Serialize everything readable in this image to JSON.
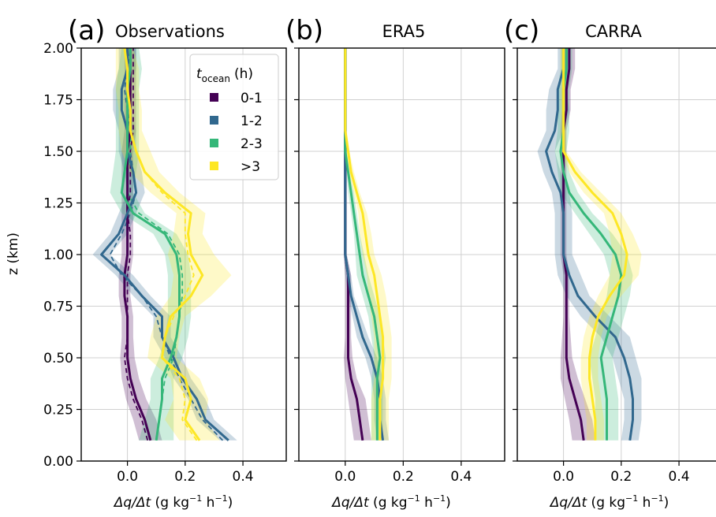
{
  "figure": {
    "ylabel": "z (km)",
    "legend_title_main": "t",
    "legend_title_sub": "ocean",
    "legend_title_unit": "(h)",
    "xlabel_main": "Δq/Δt",
    "xlabel_unit": "(g kg",
    "xlabel_exp1": "−1",
    "xlabel_mid": " h",
    "xlabel_exp2": "−1",
    "xlabel_close": ")"
  },
  "chart_data": [
    {
      "type": "line",
      "panel_label": "(a)",
      "title": "Observations",
      "xlim": [
        -0.16,
        0.55
      ],
      "ylim": [
        0.0,
        2.0
      ],
      "xticks": [
        "0.0",
        "0.2",
        "0.4"
      ],
      "xtick_values": [
        0.0,
        0.2,
        0.4
      ],
      "yticks": [
        "0.00",
        "0.25",
        "0.50",
        "0.75",
        "1.00",
        "1.25",
        "1.50",
        "1.75",
        "2.00"
      ],
      "ytick_values": [
        0.0,
        0.25,
        0.5,
        0.75,
        1.0,
        1.25,
        1.5,
        1.75,
        2.0
      ],
      "grid": true,
      "legend": "top-right",
      "series": [
        {
          "name": "0-1",
          "color": "#440154",
          "z": [
            0.1,
            0.2,
            0.3,
            0.4,
            0.5,
            0.6,
            0.7,
            0.8,
            0.9,
            1.0,
            1.1,
            1.2,
            1.3,
            1.4,
            1.5,
            1.6,
            1.7,
            1.8,
            1.9,
            2.0
          ],
          "x": [
            0.08,
            0.06,
            0.03,
            0.01,
            0.0,
            0.0,
            0.0,
            -0.01,
            -0.01,
            0.0,
            0.0,
            0.0,
            0.0,
            0.0,
            0.0,
            0.01,
            0.01,
            0.01,
            0.01,
            0.01
          ],
          "x_dashed": [
            0.07,
            0.05,
            0.02,
            0.0,
            -0.01,
            0.0,
            0.0,
            0.0,
            0.0,
            0.01,
            0.01,
            0.0,
            0.01,
            0.01,
            0.01,
            0.02,
            0.02,
            0.02,
            0.02,
            0.02
          ],
          "spread": [
            0.04,
            0.04,
            0.035,
            0.03,
            0.025,
            0.02,
            0.02,
            0.02,
            0.02,
            0.02,
            0.02,
            0.02,
            0.02,
            0.02,
            0.02,
            0.02,
            0.02,
            0.02,
            0.02,
            0.02
          ]
        },
        {
          "name": "1-2",
          "color": "#31688e",
          "z": [
            0.1,
            0.2,
            0.3,
            0.4,
            0.5,
            0.6,
            0.7,
            0.8,
            0.9,
            1.0,
            1.1,
            1.2,
            1.3,
            1.4,
            1.5,
            1.6,
            1.7,
            1.8,
            1.9,
            2.0
          ],
          "x": [
            0.35,
            0.27,
            0.24,
            0.19,
            0.16,
            0.12,
            0.12,
            0.05,
            -0.01,
            -0.09,
            -0.03,
            0.0,
            0.03,
            0.02,
            0.0,
            0.0,
            -0.02,
            -0.02,
            0.0,
            0.0
          ],
          "x_dashed": [
            0.33,
            0.26,
            0.22,
            0.18,
            0.15,
            0.12,
            0.1,
            0.05,
            -0.02,
            -0.06,
            -0.02,
            0.01,
            0.03,
            0.02,
            0.01,
            0.01,
            0.0,
            -0.01,
            0.0,
            0.01
          ],
          "spread": [
            0.03,
            0.03,
            0.03,
            0.03,
            0.03,
            0.03,
            0.03,
            0.03,
            0.03,
            0.03,
            0.03,
            0.03,
            0.03,
            0.03,
            0.03,
            0.03,
            0.03,
            0.03,
            0.03,
            0.03
          ]
        },
        {
          "name": "2-3",
          "color": "#35b779",
          "z": [
            0.1,
            0.2,
            0.3,
            0.4,
            0.5,
            0.6,
            0.7,
            0.8,
            0.9,
            1.0,
            1.1,
            1.2,
            1.3,
            1.4,
            1.5,
            1.6,
            1.7,
            1.8,
            1.9,
            2.0
          ],
          "x": [
            0.1,
            0.11,
            0.12,
            0.12,
            0.15,
            0.17,
            0.18,
            0.18,
            0.18,
            0.17,
            0.13,
            0.02,
            -0.02,
            -0.01,
            0.0,
            0.0,
            0.0,
            0.0,
            0.01,
            0.01
          ],
          "x_dashed": [
            0.1,
            0.11,
            0.12,
            0.13,
            0.16,
            0.17,
            0.18,
            0.19,
            0.19,
            0.18,
            0.14,
            0.04,
            0.0,
            0.0,
            0.01,
            0.01,
            0.01,
            0.01,
            0.01,
            0.01
          ],
          "spread": [
            0.06,
            0.05,
            0.04,
            0.04,
            0.04,
            0.04,
            0.04,
            0.04,
            0.04,
            0.04,
            0.04,
            0.04,
            0.04,
            0.04,
            0.04,
            0.04,
            0.04,
            0.04,
            0.04,
            0.03
          ]
        },
        {
          "name": ">3",
          "color": "#fde725",
          "z": [
            0.1,
            0.2,
            0.3,
            0.4,
            0.5,
            0.6,
            0.7,
            0.8,
            0.9,
            1.0,
            1.1,
            1.2,
            1.3,
            1.4,
            1.5,
            1.6,
            1.7,
            1.8,
            1.9,
            2.0
          ],
          "x": [
            0.25,
            0.2,
            0.22,
            0.2,
            0.12,
            0.13,
            0.15,
            0.22,
            0.26,
            0.22,
            0.21,
            0.22,
            0.13,
            0.06,
            0.03,
            0.01,
            0.01,
            0.0,
            0.0,
            -0.01
          ],
          "x_dashed": [
            0.24,
            0.19,
            0.2,
            0.18,
            0.12,
            0.13,
            0.16,
            0.2,
            0.23,
            0.21,
            0.2,
            0.2,
            0.12,
            0.06,
            0.03,
            0.01,
            0.01,
            0.0,
            0.0,
            0.0
          ],
          "spread": [
            0.07,
            0.07,
            0.06,
            0.05,
            0.05,
            0.05,
            0.05,
            0.07,
            0.1,
            0.08,
            0.05,
            0.05,
            0.05,
            0.05,
            0.05,
            0.04,
            0.04,
            0.04,
            0.04,
            0.03
          ]
        }
      ]
    },
    {
      "type": "line",
      "panel_label": "(b)",
      "title": "ERA5",
      "xlim": [
        -0.16,
        0.55
      ],
      "ylim": [
        0.0,
        2.0
      ],
      "xticks": [
        "0.0",
        "0.2",
        "0.4"
      ],
      "xtick_values": [
        0.0,
        0.2,
        0.4
      ],
      "grid": true,
      "series": [
        {
          "name": "0-1",
          "color": "#440154",
          "z": [
            0.1,
            0.2,
            0.3,
            0.4,
            0.5,
            0.6,
            0.7,
            0.8,
            0.9,
            1.0,
            1.1,
            1.2,
            1.3,
            1.4,
            1.5,
            1.6,
            1.7,
            1.8,
            1.9,
            2.0
          ],
          "x": [
            0.06,
            0.05,
            0.04,
            0.02,
            0.01,
            0.01,
            0.01,
            0.01,
            0.01,
            0.0,
            0.0,
            0.0,
            0.0,
            0.0,
            0.0,
            0.0,
            0.0,
            0.0,
            0.0,
            0.0
          ],
          "spread": [
            0.03,
            0.03,
            0.03,
            0.02,
            0.015,
            0.01,
            0.01,
            0.01,
            0.01,
            0.005,
            0.005,
            0.005,
            0.005,
            0.005,
            0.005,
            0.005,
            0.005,
            0.005,
            0.005,
            0.005
          ]
        },
        {
          "name": "1-2",
          "color": "#31688e",
          "z": [
            0.1,
            0.2,
            0.3,
            0.4,
            0.5,
            0.6,
            0.7,
            0.8,
            0.9,
            1.0,
            1.1,
            1.2,
            1.3,
            1.4,
            1.5,
            1.6,
            1.7,
            1.8,
            1.9,
            2.0
          ],
          "x": [
            0.13,
            0.12,
            0.12,
            0.11,
            0.09,
            0.06,
            0.04,
            0.02,
            0.01,
            0.0,
            0.0,
            0.0,
            0.0,
            0.0,
            0.0,
            0.0,
            0.0,
            0.0,
            0.0,
            0.0
          ],
          "spread": [
            0.02,
            0.02,
            0.02,
            0.02,
            0.02,
            0.02,
            0.015,
            0.01,
            0.01,
            0.005,
            0.005,
            0.005,
            0.005,
            0.005,
            0.005,
            0.005,
            0.005,
            0.005,
            0.005,
            0.005
          ]
        },
        {
          "name": "2-3",
          "color": "#35b779",
          "z": [
            0.1,
            0.2,
            0.3,
            0.4,
            0.5,
            0.6,
            0.7,
            0.8,
            0.9,
            1.0,
            1.1,
            1.2,
            1.3,
            1.4,
            1.5,
            1.6,
            1.7,
            1.8,
            1.9,
            2.0
          ],
          "x": [
            0.11,
            0.11,
            0.11,
            0.11,
            0.12,
            0.11,
            0.1,
            0.08,
            0.06,
            0.05,
            0.04,
            0.03,
            0.02,
            0.01,
            0.0,
            0.0,
            0.0,
            0.0,
            0.0,
            0.0
          ],
          "spread": [
            0.02,
            0.02,
            0.02,
            0.02,
            0.02,
            0.02,
            0.02,
            0.02,
            0.02,
            0.015,
            0.01,
            0.01,
            0.01,
            0.005,
            0.005,
            0.005,
            0.005,
            0.005,
            0.005,
            0.005
          ]
        },
        {
          "name": ">3",
          "color": "#fde725",
          "z": [
            0.1,
            0.2,
            0.3,
            0.4,
            0.5,
            0.6,
            0.7,
            0.8,
            0.9,
            1.0,
            1.1,
            1.2,
            1.3,
            1.4,
            1.5,
            1.6,
            1.7,
            1.8,
            1.9,
            2.0
          ],
          "x": [
            0.12,
            0.12,
            0.12,
            0.13,
            0.13,
            0.13,
            0.12,
            0.11,
            0.1,
            0.08,
            0.07,
            0.06,
            0.04,
            0.02,
            0.01,
            0.0,
            0.0,
            0.0,
            0.0,
            0.0
          ],
          "spread": [
            0.03,
            0.03,
            0.03,
            0.03,
            0.03,
            0.03,
            0.03,
            0.03,
            0.025,
            0.02,
            0.02,
            0.015,
            0.01,
            0.01,
            0.005,
            0.005,
            0.005,
            0.005,
            0.005,
            0.005
          ]
        }
      ]
    },
    {
      "type": "line",
      "panel_label": "(c)",
      "title": "CARRA",
      "xlim": [
        -0.16,
        0.55
      ],
      "ylim": [
        0.0,
        2.0
      ],
      "xticks": [
        "0.0",
        "0.2",
        "0.4"
      ],
      "xtick_values": [
        0.0,
        0.2,
        0.4
      ],
      "grid": true,
      "series": [
        {
          "name": "0-1",
          "color": "#440154",
          "z": [
            0.1,
            0.2,
            0.3,
            0.4,
            0.5,
            0.6,
            0.7,
            0.8,
            0.9,
            1.0,
            1.1,
            1.2,
            1.3,
            1.4,
            1.5,
            1.6,
            1.7,
            1.8,
            1.9,
            2.0
          ],
          "x": [
            0.07,
            0.06,
            0.04,
            0.02,
            0.01,
            0.01,
            0.01,
            0.01,
            0.01,
            0.0,
            0.0,
            0.0,
            0.0,
            0.0,
            0.0,
            0.0,
            0.01,
            0.01,
            0.02,
            0.02
          ],
          "spread": [
            0.04,
            0.04,
            0.035,
            0.03,
            0.02,
            0.015,
            0.01,
            0.01,
            0.01,
            0.01,
            0.01,
            0.01,
            0.01,
            0.01,
            0.01,
            0.01,
            0.015,
            0.015,
            0.02,
            0.02
          ]
        },
        {
          "name": "1-2",
          "color": "#31688e",
          "z": [
            0.1,
            0.2,
            0.3,
            0.4,
            0.5,
            0.6,
            0.7,
            0.8,
            0.9,
            1.0,
            1.1,
            1.2,
            1.3,
            1.4,
            1.5,
            1.6,
            1.7,
            1.8,
            1.9,
            2.0
          ],
          "x": [
            0.23,
            0.24,
            0.24,
            0.23,
            0.21,
            0.18,
            0.11,
            0.05,
            0.02,
            0.0,
            0.0,
            0.0,
            -0.01,
            -0.04,
            -0.06,
            -0.03,
            -0.02,
            -0.02,
            0.0,
            0.0
          ],
          "spread": [
            0.03,
            0.03,
            0.03,
            0.04,
            0.04,
            0.05,
            0.05,
            0.04,
            0.04,
            0.03,
            0.03,
            0.03,
            0.03,
            0.03,
            0.03,
            0.03,
            0.04,
            0.03,
            0.02,
            0.02
          ]
        },
        {
          "name": "2-3",
          "color": "#35b779",
          "z": [
            0.1,
            0.2,
            0.3,
            0.4,
            0.5,
            0.6,
            0.7,
            0.8,
            0.9,
            1.0,
            1.1,
            1.2,
            1.3,
            1.4,
            1.5,
            1.6,
            1.7,
            1.8,
            1.9,
            2.0
          ],
          "x": [
            0.15,
            0.15,
            0.15,
            0.14,
            0.13,
            0.15,
            0.17,
            0.19,
            0.2,
            0.18,
            0.13,
            0.07,
            0.02,
            0.0,
            -0.01,
            0.0,
            0.0,
            0.0,
            0.01,
            0.01
          ],
          "spread": [
            0.04,
            0.04,
            0.04,
            0.04,
            0.04,
            0.04,
            0.04,
            0.04,
            0.04,
            0.04,
            0.04,
            0.03,
            0.03,
            0.02,
            0.02,
            0.02,
            0.02,
            0.02,
            0.02,
            0.02
          ]
        },
        {
          "name": ">3",
          "color": "#fde725",
          "z": [
            0.1,
            0.2,
            0.3,
            0.4,
            0.5,
            0.6,
            0.7,
            0.8,
            0.9,
            1.0,
            1.1,
            1.2,
            1.3,
            1.4,
            1.5,
            1.6,
            1.7,
            1.8,
            1.9,
            2.0
          ],
          "x": [
            0.11,
            0.11,
            0.1,
            0.09,
            0.09,
            0.1,
            0.12,
            0.16,
            0.21,
            0.22,
            0.2,
            0.17,
            0.1,
            0.04,
            0.0,
            0.0,
            0.0,
            0.0,
            0.0,
            0.0
          ],
          "spread": [
            0.03,
            0.03,
            0.03,
            0.03,
            0.03,
            0.03,
            0.03,
            0.04,
            0.05,
            0.05,
            0.04,
            0.03,
            0.03,
            0.02,
            0.01,
            0.01,
            0.01,
            0.01,
            0.01,
            0.01
          ]
        }
      ]
    }
  ]
}
